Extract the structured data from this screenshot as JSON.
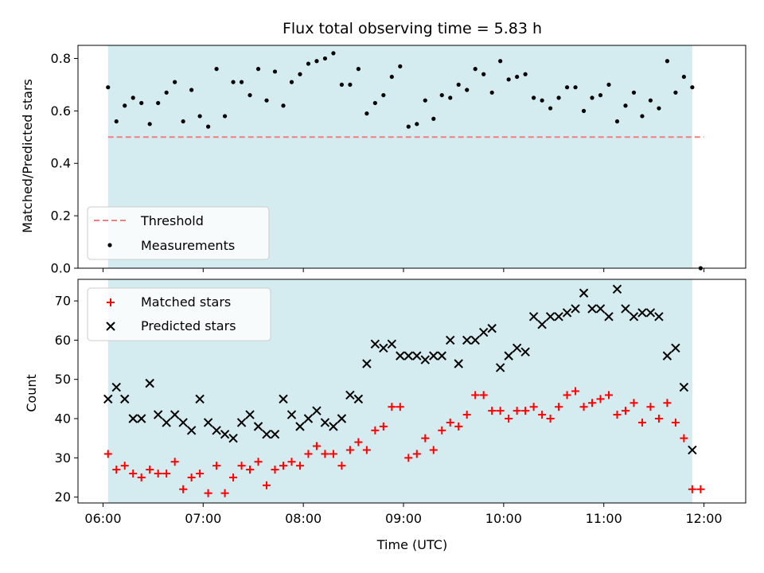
{
  "chart_data": [
    {
      "type": "scatter",
      "title": "Flux total observing time = 5.83 h",
      "xlabel": "",
      "ylabel": "Matched/Predicted stars",
      "ylim": [
        0,
        0.85
      ],
      "yticks": [
        "0.0",
        "0.2",
        "0.4",
        "0.6",
        "0.8"
      ],
      "shaded_span": [
        "06:03",
        "11:53"
      ],
      "threshold": {
        "name": "Threshold",
        "value": 0.5,
        "x_range": [
          "06:03",
          "12:00"
        ],
        "color": "#f08080"
      },
      "series": [
        {
          "name": "Measurements",
          "x": [
            "06:03",
            "06:08",
            "06:13",
            "06:18",
            "06:23",
            "06:28",
            "06:33",
            "06:38",
            "06:43",
            "06:48",
            "06:53",
            "06:58",
            "07:03",
            "07:08",
            "07:13",
            "07:18",
            "07:23",
            "07:28",
            "07:33",
            "07:38",
            "07:43",
            "07:48",
            "07:53",
            "07:58",
            "08:03",
            "08:08",
            "08:13",
            "08:18",
            "08:23",
            "08:28",
            "08:33",
            "08:38",
            "08:43",
            "08:48",
            "08:53",
            "08:58",
            "09:03",
            "09:08",
            "09:13",
            "09:18",
            "09:23",
            "09:28",
            "09:33",
            "09:38",
            "09:43",
            "09:48",
            "09:53",
            "09:58",
            "10:03",
            "10:08",
            "10:13",
            "10:18",
            "10:23",
            "10:28",
            "10:33",
            "10:38",
            "10:43",
            "10:48",
            "10:53",
            "10:58",
            "11:03",
            "11:08",
            "11:13",
            "11:18",
            "11:23",
            "11:28",
            "11:33",
            "11:38",
            "11:43",
            "11:48",
            "11:53",
            "11:58"
          ],
          "y": [
            0.69,
            0.56,
            0.62,
            0.65,
            0.63,
            0.55,
            0.63,
            0.67,
            0.71,
            0.56,
            0.68,
            0.58,
            0.54,
            0.76,
            0.58,
            0.71,
            0.71,
            0.66,
            0.76,
            0.64,
            0.75,
            0.62,
            0.71,
            0.74,
            0.78,
            0.79,
            0.8,
            0.82,
            0.7,
            0.7,
            0.76,
            0.59,
            0.63,
            0.66,
            0.73,
            0.77,
            0.54,
            0.55,
            0.64,
            0.57,
            0.66,
            0.65,
            0.7,
            0.68,
            0.76,
            0.74,
            0.67,
            0.79,
            0.72,
            0.73,
            0.74,
            0.65,
            0.64,
            0.61,
            0.65,
            0.69,
            0.69,
            0.6,
            0.65,
            0.66,
            0.7,
            0.56,
            0.62,
            0.67,
            0.58,
            0.64,
            0.61,
            0.79,
            0.67,
            0.73,
            0.69,
            0.0
          ],
          "color": "#000000"
        }
      ],
      "legend": {
        "placement": "lower-left",
        "entries": [
          "Threshold",
          "Measurements"
        ]
      },
      "shade_color": "#d4ebf0"
    },
    {
      "type": "scatter",
      "title": "",
      "xlabel": "Time (UTC)",
      "ylabel": "Count",
      "ylim": [
        18.5,
        75.5
      ],
      "yticks": [
        "20",
        "30",
        "40",
        "50",
        "60",
        "70"
      ],
      "xticks": [
        "06:00",
        "07:00",
        "08:00",
        "09:00",
        "10:00",
        "11:00",
        "12:00"
      ],
      "xlim": [
        "05:45",
        "12:25"
      ],
      "shaded_span": [
        "06:03",
        "11:53"
      ],
      "series": [
        {
          "name": "Matched stars",
          "marker": "plus",
          "color": "#ff0000",
          "x": [
            "06:03",
            "06:08",
            "06:13",
            "06:18",
            "06:23",
            "06:28",
            "06:33",
            "06:38",
            "06:43",
            "06:48",
            "06:53",
            "06:58",
            "07:03",
            "07:08",
            "07:13",
            "07:18",
            "07:23",
            "07:28",
            "07:33",
            "07:38",
            "07:43",
            "07:48",
            "07:53",
            "07:58",
            "08:03",
            "08:08",
            "08:13",
            "08:18",
            "08:23",
            "08:28",
            "08:33",
            "08:38",
            "08:43",
            "08:48",
            "08:53",
            "08:58",
            "09:03",
            "09:08",
            "09:13",
            "09:18",
            "09:23",
            "09:28",
            "09:33",
            "09:38",
            "09:43",
            "09:48",
            "09:53",
            "09:58",
            "10:03",
            "10:08",
            "10:13",
            "10:18",
            "10:23",
            "10:28",
            "10:33",
            "10:38",
            "10:43",
            "10:48",
            "10:53",
            "10:58",
            "11:03",
            "11:08",
            "11:13",
            "11:18",
            "11:23",
            "11:28",
            "11:33",
            "11:38",
            "11:43",
            "11:48",
            "11:53",
            "11:58"
          ],
          "y": [
            31,
            27,
            28,
            26,
            25,
            27,
            26,
            26,
            29,
            22,
            25,
            26,
            21,
            28,
            21,
            25,
            28,
            27,
            29,
            23,
            27,
            28,
            29,
            28,
            31,
            33,
            31,
            31,
            28,
            32,
            34,
            32,
            37,
            38,
            43,
            43,
            30,
            31,
            35,
            32,
            37,
            39,
            38,
            41,
            46,
            46,
            42,
            42,
            40,
            42,
            42,
            43,
            41,
            40,
            43,
            46,
            47,
            43,
            44,
            45,
            46,
            41,
            42,
            44,
            39,
            43,
            40,
            44,
            39,
            35,
            22,
            22
          ]
        },
        {
          "name": "Predicted stars",
          "marker": "x",
          "color": "#000000",
          "x": [
            "06:03",
            "06:08",
            "06:13",
            "06:18",
            "06:23",
            "06:28",
            "06:33",
            "06:38",
            "06:43",
            "06:48",
            "06:53",
            "06:58",
            "07:03",
            "07:08",
            "07:13",
            "07:18",
            "07:23",
            "07:28",
            "07:33",
            "07:38",
            "07:43",
            "07:48",
            "07:53",
            "07:58",
            "08:03",
            "08:08",
            "08:13",
            "08:18",
            "08:23",
            "08:28",
            "08:33",
            "08:38",
            "08:43",
            "08:48",
            "08:53",
            "08:58",
            "09:03",
            "09:08",
            "09:13",
            "09:18",
            "09:23",
            "09:28",
            "09:33",
            "09:38",
            "09:43",
            "09:48",
            "09:53",
            "09:58",
            "10:03",
            "10:08",
            "10:13",
            "10:18",
            "10:23",
            "10:28",
            "10:33",
            "10:38",
            "10:43",
            "10:48",
            "10:53",
            "10:58",
            "11:03",
            "11:08",
            "11:13",
            "11:18",
            "11:23",
            "11:28",
            "11:33",
            "11:38",
            "11:43",
            "11:48",
            "11:53"
          ],
          "y": [
            45,
            48,
            45,
            40,
            40,
            49,
            41,
            39,
            41,
            39,
            37,
            45,
            39,
            37,
            36,
            35,
            39,
            41,
            38,
            36,
            36,
            45,
            41,
            38,
            40,
            42,
            39,
            38,
            40,
            46,
            45,
            54,
            59,
            58,
            59,
            56,
            56,
            56,
            55,
            56,
            56,
            60,
            54,
            60,
            60,
            62,
            63,
            53,
            56,
            58,
            57,
            66,
            64,
            66,
            66,
            67,
            68,
            72,
            68,
            68,
            66,
            73,
            68,
            66,
            67,
            67,
            66,
            56,
            58,
            48,
            32
          ]
        }
      ],
      "legend": {
        "placement": "upper-left",
        "entries": [
          "Matched stars",
          "Predicted stars"
        ]
      },
      "shade_color": "#d4ebf0"
    }
  ]
}
